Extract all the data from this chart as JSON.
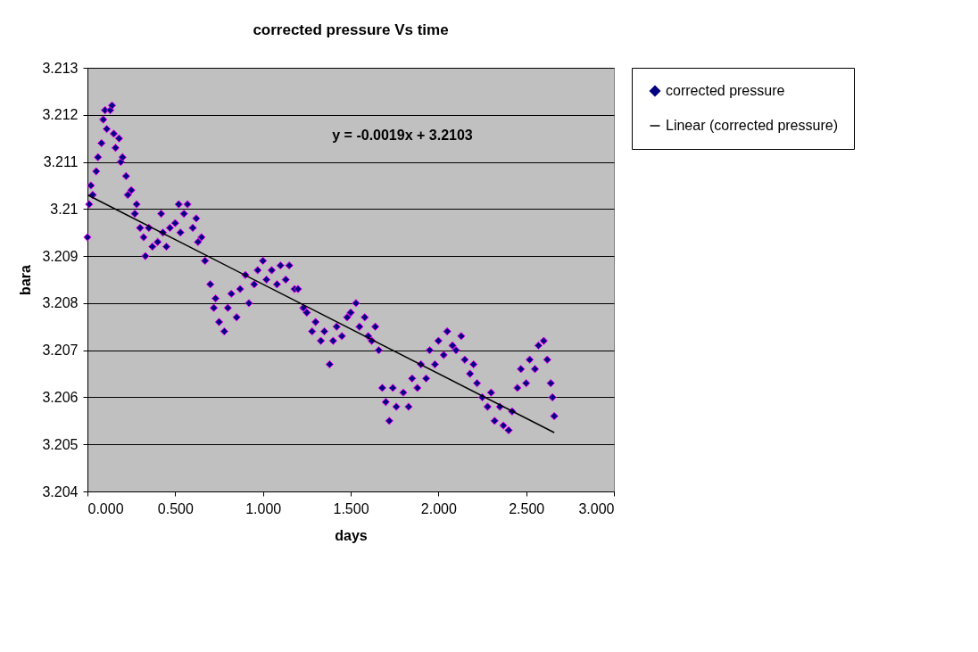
{
  "chart_data": {
    "type": "scatter",
    "title": "corrected pressure Vs time",
    "xlabel": "days",
    "ylabel": "bara",
    "xlim": [
      0,
      3
    ],
    "xticks": [
      {
        "value": 0,
        "label": "0.000"
      },
      {
        "value": 0.5,
        "label": "0.500"
      },
      {
        "value": 1,
        "label": "1.000"
      },
      {
        "value": 1.5,
        "label": "1.500"
      },
      {
        "value": 2,
        "label": "2.000"
      },
      {
        "value": 2.5,
        "label": "2.500"
      },
      {
        "value": 3,
        "label": "3.000"
      }
    ],
    "ylim": [
      3.204,
      3.213
    ],
    "yticks": [
      3.204,
      3.205,
      3.206,
      3.207,
      3.208,
      3.209,
      {
        "value": 3.21,
        "label": "3.21"
      },
      3.211,
      3.212,
      3.213
    ],
    "grid": "y",
    "legend": "right",
    "marker": "diamond",
    "annotations": [
      "y = -0.0019x + 3.2103"
    ],
    "series": [
      {
        "name": "corrected pressure",
        "color": "#000080",
        "x": [
          0.0,
          0.01,
          0.02,
          0.03,
          0.05,
          0.06,
          0.08,
          0.09,
          0.1,
          0.11,
          0.13,
          0.14,
          0.15,
          0.16,
          0.18,
          0.19,
          0.2,
          0.22,
          0.23,
          0.25,
          0.27,
          0.28,
          0.3,
          0.32,
          0.33,
          0.35,
          0.37,
          0.4,
          0.42,
          0.43,
          0.45,
          0.47,
          0.5,
          0.52,
          0.53,
          0.55,
          0.57,
          0.6,
          0.62,
          0.63,
          0.65,
          0.67,
          0.7,
          0.72,
          0.73,
          0.75,
          0.78,
          0.8,
          0.82,
          0.85,
          0.87,
          0.9,
          0.92,
          0.95,
          0.97,
          1.0,
          1.02,
          1.05,
          1.08,
          1.1,
          1.13,
          1.15,
          1.18,
          1.2,
          1.23,
          1.25,
          1.28,
          1.3,
          1.33,
          1.35,
          1.38,
          1.4,
          1.42,
          1.45,
          1.48,
          1.5,
          1.53,
          1.55,
          1.58,
          1.6,
          1.62,
          1.64,
          1.66,
          1.68,
          1.7,
          1.72,
          1.74,
          1.76,
          1.8,
          1.83,
          1.85,
          1.88,
          1.9,
          1.93,
          1.95,
          1.98,
          2.0,
          2.03,
          2.05,
          2.08,
          2.1,
          2.13,
          2.15,
          2.18,
          2.2,
          2.22,
          2.25,
          2.28,
          2.3,
          2.32,
          2.35,
          2.37,
          2.4,
          2.42,
          2.45,
          2.47,
          2.5,
          2.52,
          2.55,
          2.57,
          2.6,
          2.62,
          2.64,
          2.65,
          2.66
        ],
        "values": [
          3.2094,
          3.2101,
          3.2105,
          3.2103,
          3.2108,
          3.2111,
          3.2114,
          3.2119,
          3.2121,
          3.2117,
          3.2121,
          3.2122,
          3.2116,
          3.2113,
          3.2115,
          3.211,
          3.2111,
          3.2107,
          3.2103,
          3.2104,
          3.2099,
          3.2101,
          3.2096,
          3.2094,
          3.209,
          3.2096,
          3.2092,
          3.2093,
          3.2099,
          3.2095,
          3.2092,
          3.2096,
          3.2097,
          3.2101,
          3.2095,
          3.2099,
          3.2101,
          3.2096,
          3.2098,
          3.2093,
          3.2094,
          3.2089,
          3.2084,
          3.2079,
          3.2081,
          3.2076,
          3.2074,
          3.2079,
          3.2082,
          3.2077,
          3.2083,
          3.2086,
          3.208,
          3.2084,
          3.2087,
          3.2089,
          3.2085,
          3.2087,
          3.2084,
          3.2088,
          3.2085,
          3.2088,
          3.2083,
          3.2083,
          3.2079,
          3.2078,
          3.2074,
          3.2076,
          3.2072,
          3.2074,
          3.2067,
          3.2072,
          3.2075,
          3.2073,
          3.2077,
          3.2078,
          3.208,
          3.2075,
          3.2077,
          3.2073,
          3.2072,
          3.2075,
          3.207,
          3.2062,
          3.2059,
          3.2055,
          3.2062,
          3.2058,
          3.2061,
          3.2058,
          3.2064,
          3.2062,
          3.2067,
          3.2064,
          3.207,
          3.2067,
          3.2072,
          3.2069,
          3.2074,
          3.2071,
          3.207,
          3.2073,
          3.2068,
          3.2065,
          3.2067,
          3.2063,
          3.206,
          3.2058,
          3.2061,
          3.2055,
          3.2058,
          3.2054,
          3.2053,
          3.2057,
          3.2062,
          3.2066,
          3.2063,
          3.2068,
          3.2066,
          3.2071,
          3.2072,
          3.2068,
          3.2063,
          3.206,
          3.2056
        ]
      },
      {
        "name": "Linear (corrected pressure)",
        "type": "line",
        "color": "#000000",
        "marker": "none",
        "x": [
          0,
          2.66
        ],
        "values": [
          3.2103,
          3.20525
        ]
      }
    ]
  }
}
